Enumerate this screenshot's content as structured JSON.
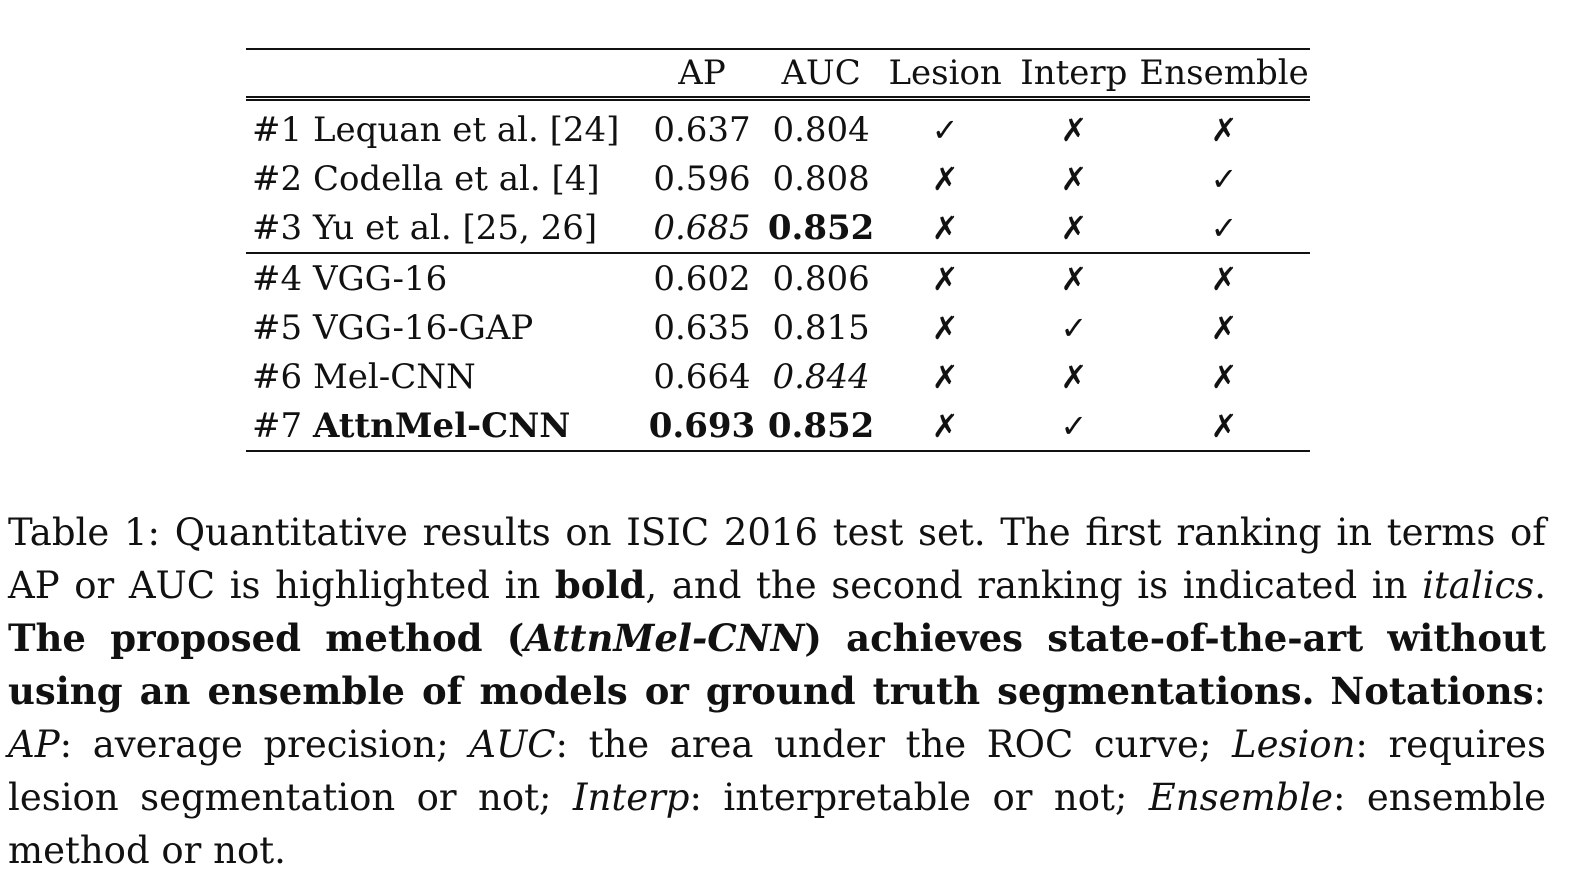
{
  "table": {
    "headers": [
      "",
      "AP",
      "AUC",
      "Lesion",
      "Interp",
      "Ensemble"
    ],
    "groups": [
      {
        "rows": [
          {
            "id": "#1",
            "method": "Lequan et al. [24]",
            "ap": "0.637",
            "auc": "0.804",
            "lesion": "✓",
            "interp": "✗",
            "ensemble": "✗"
          },
          {
            "id": "#2",
            "method": "Codella et al. [4]",
            "ap": "0.596",
            "auc": "0.808",
            "lesion": "✗",
            "interp": "✗",
            "ensemble": "✓"
          },
          {
            "id": "#3",
            "method": "Yu et al. [25, 26]",
            "ap": "0.685",
            "auc": "0.852",
            "lesion": "✗",
            "interp": "✗",
            "ensemble": "✓"
          }
        ]
      },
      {
        "rows": [
          {
            "id": "#4",
            "method": "VGG-16",
            "ap": "0.602",
            "auc": "0.806",
            "lesion": "✗",
            "interp": "✗",
            "ensemble": "✗"
          },
          {
            "id": "#5",
            "method": "VGG-16-GAP",
            "ap": "0.635",
            "auc": "0.815",
            "lesion": "✗",
            "interp": "✓",
            "ensemble": "✗"
          },
          {
            "id": "#6",
            "method": "Mel-CNN",
            "ap": "0.664",
            "auc": "0.844",
            "lesion": "✗",
            "interp": "✗",
            "ensemble": "✗"
          },
          {
            "id": "#7",
            "method": "AttnMel-CNN",
            "ap": "0.693",
            "auc": "0.852",
            "lesion": "✗",
            "interp": "✓",
            "ensemble": "✗"
          }
        ]
      }
    ]
  },
  "caption": {
    "part1": "Table 1: Quantitative results on ISIC 2016 test set. The first ranking in terms of AP or AUC is highlighted in ",
    "bold_word": "bold",
    "part2": ", and the second ranking is indicated in ",
    "italic_word": "italics",
    "part3": ". ",
    "bold_sentence_a": "The proposed method (",
    "bold_italic_name": "AttnMel-CNN",
    "bold_sentence_b": ") achieves state-of-the-art without using an ensemble of models or ground truth segmentations.",
    "notations_label": "Notations",
    "notations_colon": ": ",
    "ap_term": "AP",
    "ap_def": ": average precision; ",
    "auc_term": "AUC",
    "auc_def": ": the area under the ROC curve; ",
    "lesion_term": "Lesion",
    "lesion_def": ": requires lesion segmentation or not; ",
    "interp_term": "Interp",
    "interp_def": ": interpretable or not; ",
    "ensemble_term": "Ensemble",
    "ensemble_def": ": ensemble method or not."
  }
}
